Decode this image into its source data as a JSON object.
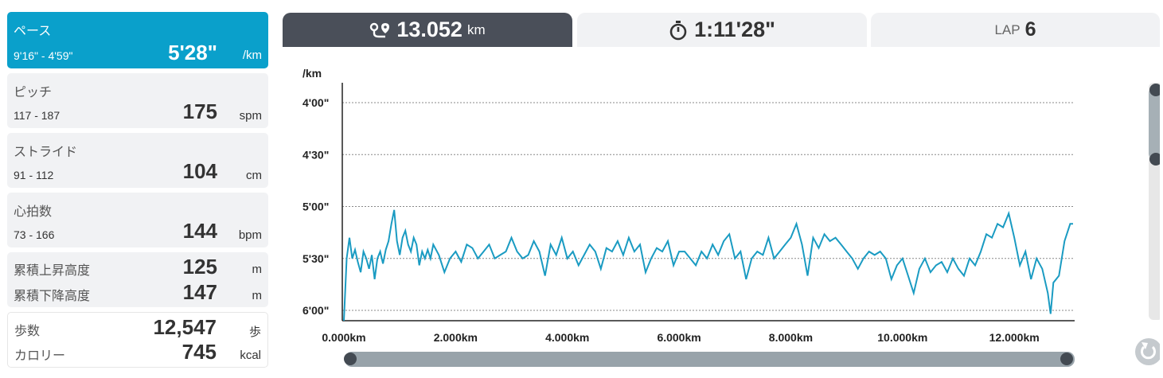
{
  "cards": {
    "pace": {
      "title": "ペース",
      "range": "9'16\" - 4'59\"",
      "value": "5'28\"",
      "unit": "/km"
    },
    "pitch": {
      "title": "ピッチ",
      "range": "117 - 187",
      "value": "175",
      "unit": "spm"
    },
    "stride": {
      "title": "ストライド",
      "range": "91 - 112",
      "value": "104",
      "unit": "cm"
    },
    "heart": {
      "title": "心拍数",
      "range": "73 - 166",
      "value": "144",
      "unit": "bpm"
    },
    "elev": {
      "up_label": "累積上昇高度",
      "up_value": "125",
      "up_unit": "m",
      "down_label": "累積下降高度",
      "down_value": "147",
      "down_unit": "m"
    },
    "steps": {
      "steps_label": "歩数",
      "steps_value": "12,547",
      "steps_unit": "歩",
      "cal_label": "カロリー",
      "cal_value": "745",
      "cal_unit": "kcal"
    }
  },
  "tabs": {
    "distance": {
      "value": "13.052",
      "unit": "km",
      "icon": "route-icon"
    },
    "time": {
      "value": "1:11'28\"",
      "icon": "stopwatch-icon"
    },
    "lap": {
      "prefix": "LAP",
      "value": "6"
    }
  },
  "colors": {
    "accent": "#0aa0cb",
    "line": "#1a9bc2",
    "tab_active": "#4a4f59"
  },
  "chart_data": {
    "type": "line",
    "ylabel": "/km",
    "y_ticks": [
      "4'00\"",
      "4'30\"",
      "5'00\"",
      "5'30\"",
      "6'00\""
    ],
    "y_tick_seconds": [
      240,
      270,
      300,
      330,
      360
    ],
    "ylim": [
      234,
      364
    ],
    "y_inverted": true,
    "x_ticks": [
      "0.000km",
      "2.000km",
      "4.000km",
      "6.000km",
      "8.000km",
      "10.000km",
      "12.000km"
    ],
    "x_tick_km": [
      0,
      2,
      4,
      6,
      8,
      10,
      12
    ],
    "xlim": [
      0,
      13.052
    ],
    "grid": true,
    "series": [
      {
        "values": [
          [
            0,
            370
          ],
          [
            0.05,
            330
          ],
          [
            0.1,
            318
          ],
          [
            0.15,
            330
          ],
          [
            0.2,
            325
          ],
          [
            0.25,
            332
          ],
          [
            0.3,
            338
          ],
          [
            0.35,
            326
          ],
          [
            0.4,
            330
          ],
          [
            0.45,
            336
          ],
          [
            0.5,
            328
          ],
          [
            0.55,
            342
          ],
          [
            0.6,
            330
          ],
          [
            0.65,
            326
          ],
          [
            0.7,
            333
          ],
          [
            0.75,
            325
          ],
          [
            0.8,
            320
          ],
          [
            0.85,
            310
          ],
          [
            0.9,
            302
          ],
          [
            0.95,
            320
          ],
          [
            1.0,
            328
          ],
          [
            1.05,
            318
          ],
          [
            1.1,
            314
          ],
          [
            1.15,
            322
          ],
          [
            1.2,
            326
          ],
          [
            1.25,
            318
          ],
          [
            1.3,
            322
          ],
          [
            1.35,
            334
          ],
          [
            1.4,
            326
          ],
          [
            1.45,
            330
          ],
          [
            1.5,
            325
          ],
          [
            1.55,
            330
          ],
          [
            1.6,
            322
          ],
          [
            1.7,
            328
          ],
          [
            1.8,
            338
          ],
          [
            1.9,
            330
          ],
          [
            2.0,
            326
          ],
          [
            2.1,
            332
          ],
          [
            2.2,
            322
          ],
          [
            2.3,
            324
          ],
          [
            2.4,
            330
          ],
          [
            2.5,
            326
          ],
          [
            2.6,
            322
          ],
          [
            2.7,
            330
          ],
          [
            2.8,
            328
          ],
          [
            2.9,
            326
          ],
          [
            3.0,
            318
          ],
          [
            3.1,
            326
          ],
          [
            3.2,
            330
          ],
          [
            3.3,
            328
          ],
          [
            3.4,
            320
          ],
          [
            3.5,
            326
          ],
          [
            3.6,
            340
          ],
          [
            3.7,
            322
          ],
          [
            3.8,
            328
          ],
          [
            3.9,
            318
          ],
          [
            4.0,
            330
          ],
          [
            4.1,
            326
          ],
          [
            4.2,
            334
          ],
          [
            4.3,
            328
          ],
          [
            4.4,
            322
          ],
          [
            4.5,
            326
          ],
          [
            4.6,
            336
          ],
          [
            4.7,
            324
          ],
          [
            4.8,
            326
          ],
          [
            4.9,
            320
          ],
          [
            5.0,
            328
          ],
          [
            5.1,
            318
          ],
          [
            5.2,
            326
          ],
          [
            5.3,
            322
          ],
          [
            5.4,
            338
          ],
          [
            5.5,
            330
          ],
          [
            5.6,
            324
          ],
          [
            5.7,
            326
          ],
          [
            5.8,
            320
          ],
          [
            5.9,
            334
          ],
          [
            6.0,
            326
          ],
          [
            6.1,
            326
          ],
          [
            6.2,
            330
          ],
          [
            6.3,
            334
          ],
          [
            6.4,
            326
          ],
          [
            6.5,
            330
          ],
          [
            6.6,
            322
          ],
          [
            6.7,
            328
          ],
          [
            6.8,
            320
          ],
          [
            6.9,
            316
          ],
          [
            7.0,
            330
          ],
          [
            7.1,
            326
          ],
          [
            7.2,
            342
          ],
          [
            7.3,
            330
          ],
          [
            7.4,
            326
          ],
          [
            7.5,
            328
          ],
          [
            7.6,
            318
          ],
          [
            7.7,
            330
          ],
          [
            7.8,
            326
          ],
          [
            7.9,
            322
          ],
          [
            8.0,
            318
          ],
          [
            8.1,
            310
          ],
          [
            8.2,
            322
          ],
          [
            8.3,
            340
          ],
          [
            8.4,
            318
          ],
          [
            8.5,
            324
          ],
          [
            8.6,
            316
          ],
          [
            8.7,
            320
          ],
          [
            8.8,
            318
          ],
          [
            8.9,
            322
          ],
          [
            9.0,
            326
          ],
          [
            9.1,
            330
          ],
          [
            9.2,
            336
          ],
          [
            9.3,
            330
          ],
          [
            9.4,
            326
          ],
          [
            9.5,
            328
          ],
          [
            9.6,
            326
          ],
          [
            9.7,
            330
          ],
          [
            9.8,
            342
          ],
          [
            9.9,
            334
          ],
          [
            10.0,
            330
          ],
          [
            10.1,
            340
          ],
          [
            10.2,
            350
          ],
          [
            10.3,
            336
          ],
          [
            10.4,
            330
          ],
          [
            10.5,
            338
          ],
          [
            10.6,
            334
          ],
          [
            10.7,
            332
          ],
          [
            10.8,
            338
          ],
          [
            10.9,
            330
          ],
          [
            11.0,
            336
          ],
          [
            11.1,
            340
          ],
          [
            11.2,
            330
          ],
          [
            11.3,
            334
          ],
          [
            11.4,
            326
          ],
          [
            11.5,
            316
          ],
          [
            11.6,
            318
          ],
          [
            11.7,
            310
          ],
          [
            11.8,
            312
          ],
          [
            11.9,
            304
          ],
          [
            12.0,
            318
          ],
          [
            12.1,
            334
          ],
          [
            12.2,
            326
          ],
          [
            12.3,
            342
          ],
          [
            12.4,
            330
          ],
          [
            12.5,
            336
          ],
          [
            12.6,
            350
          ],
          [
            12.65,
            362
          ],
          [
            12.7,
            344
          ],
          [
            12.8,
            340
          ],
          [
            12.9,
            320
          ],
          [
            13.0,
            310
          ],
          [
            13.052,
            310
          ]
        ]
      }
    ]
  }
}
